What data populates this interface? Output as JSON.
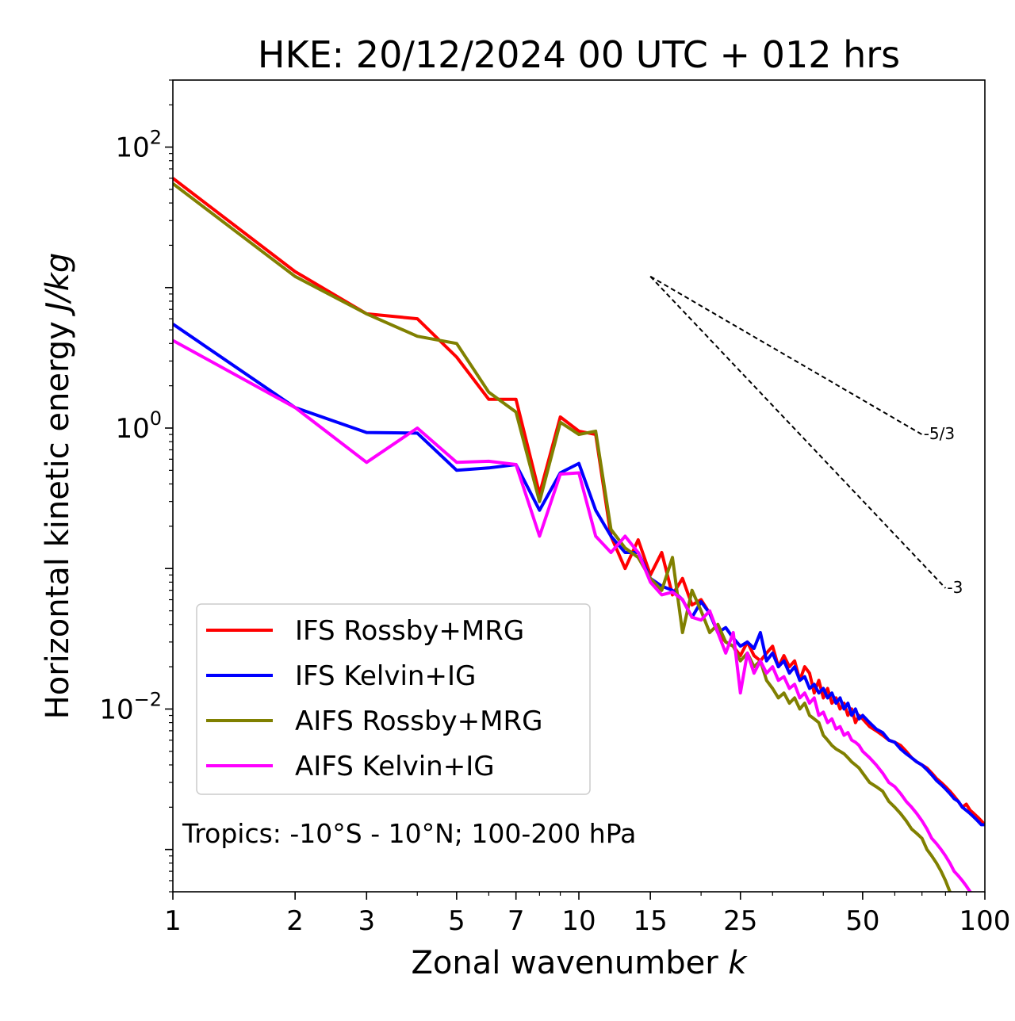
{
  "chart_data": {
    "type": "line",
    "title": "HKE: 20/12/2024 00 UTC + 012 hrs",
    "xlabel": "Zonal wavenumber",
    "xlabel_var": "k",
    "ylabel": "Horizontal kinetic energy",
    "ylabel_unit": "J/kg",
    "xscale": "log",
    "yscale": "log",
    "xlim": [
      1,
      100
    ],
    "ylim": [
      0.0005,
      300
    ],
    "x_ticks": [
      {
        "v": 1,
        "label": "1"
      },
      {
        "v": 2,
        "label": "2"
      },
      {
        "v": 3,
        "label": "3"
      },
      {
        "v": 5,
        "label": "5"
      },
      {
        "v": 7,
        "label": "7"
      },
      {
        "v": 10,
        "label": "10"
      },
      {
        "v": 15,
        "label": "15"
      },
      {
        "v": 25,
        "label": "25"
      },
      {
        "v": 50,
        "label": "50"
      },
      {
        "v": 100,
        "label": "100"
      }
    ],
    "y_ticks": [
      {
        "v": 100,
        "base": "10",
        "exp": "2"
      },
      {
        "v": 1,
        "base": "10",
        "exp": "0"
      },
      {
        "v": 0.01,
        "base": "10",
        "exp": "−2"
      }
    ],
    "grid": false,
    "legend_position": "lower-left",
    "annotation": "Tropics: -10°S - 10°N; 100-200 hPa",
    "reference_lines": [
      {
        "label": "-5/3",
        "x": [
          15,
          70
        ],
        "y": [
          12.0,
          0.9
        ]
      },
      {
        "label": "-3",
        "x": [
          15,
          80
        ],
        "y": [
          12.0,
          0.0725
        ]
      }
    ],
    "series": [
      {
        "name": "IFS Rossby+MRG",
        "color": "#ff0000",
        "x": [
          1,
          2,
          3,
          4,
          5,
          6,
          7,
          8,
          9,
          10,
          11,
          12,
          13,
          14,
          15,
          16,
          17,
          18,
          19,
          20,
          21,
          22,
          23,
          24,
          25,
          26,
          27,
          28,
          29,
          30,
          31,
          32,
          33,
          34,
          35,
          36,
          37,
          38,
          39,
          40,
          41,
          42,
          43,
          44,
          45,
          46,
          47,
          48,
          49,
          50,
          52,
          54,
          56,
          58,
          60,
          62,
          64,
          66,
          68,
          70,
          72,
          74,
          76,
          78,
          80,
          82,
          84,
          86,
          88,
          90,
          92,
          94,
          96,
          98,
          100
        ],
        "y": [
          60,
          13,
          6.5,
          6.0,
          3.2,
          1.6,
          1.6,
          0.34,
          1.2,
          0.95,
          0.9,
          0.17,
          0.1,
          0.16,
          0.09,
          0.13,
          0.065,
          0.085,
          0.055,
          0.06,
          0.048,
          0.035,
          0.03,
          0.028,
          0.024,
          0.03,
          0.024,
          0.022,
          0.025,
          0.028,
          0.02,
          0.024,
          0.02,
          0.022,
          0.016,
          0.02,
          0.018,
          0.013,
          0.016,
          0.012,
          0.014,
          0.011,
          0.012,
          0.01,
          0.011,
          0.009,
          0.01,
          0.008,
          0.009,
          0.0085,
          0.0075,
          0.007,
          0.0065,
          0.006,
          0.0058,
          0.0055,
          0.005,
          0.0045,
          0.0042,
          0.004,
          0.0038,
          0.0035,
          0.0032,
          0.003,
          0.0028,
          0.0026,
          0.0024,
          0.0022,
          0.002,
          0.0021,
          0.0019,
          0.0018,
          0.0017,
          0.0016,
          0.0015
        ]
      },
      {
        "name": "IFS Kelvin+IG",
        "color": "#0000ff",
        "x": [
          1,
          2,
          3,
          4,
          5,
          6,
          7,
          8,
          9,
          10,
          11,
          12,
          13,
          14,
          15,
          16,
          17,
          18,
          19,
          20,
          21,
          22,
          23,
          24,
          25,
          26,
          27,
          28,
          29,
          30,
          31,
          32,
          33,
          34,
          35,
          36,
          37,
          38,
          39,
          40,
          41,
          42,
          43,
          44,
          45,
          46,
          47,
          48,
          49,
          50,
          52,
          54,
          56,
          58,
          60,
          62,
          64,
          66,
          68,
          70,
          72,
          74,
          76,
          78,
          80,
          82,
          84,
          86,
          88,
          90,
          92,
          94,
          96,
          98,
          100
        ],
        "y": [
          5.5,
          1.4,
          0.93,
          0.92,
          0.5,
          0.52,
          0.55,
          0.26,
          0.48,
          0.56,
          0.26,
          0.17,
          0.13,
          0.13,
          0.085,
          0.075,
          0.07,
          0.06,
          0.045,
          0.058,
          0.048,
          0.035,
          0.038,
          0.032,
          0.028,
          0.03,
          0.027,
          0.035,
          0.022,
          0.025,
          0.02,
          0.022,
          0.018,
          0.02,
          0.016,
          0.017,
          0.014,
          0.015,
          0.013,
          0.014,
          0.012,
          0.013,
          0.011,
          0.012,
          0.01,
          0.011,
          0.009,
          0.01,
          0.0085,
          0.009,
          0.008,
          0.0072,
          0.0068,
          0.006,
          0.0058,
          0.0052,
          0.0048,
          0.0045,
          0.0042,
          0.004,
          0.0037,
          0.0034,
          0.0031,
          0.0029,
          0.0027,
          0.0025,
          0.0023,
          0.0022,
          0.002,
          0.0019,
          0.0018,
          0.0017,
          0.0016,
          0.0015,
          0.0015
        ]
      },
      {
        "name": "AIFS Rossby+MRG",
        "color": "#808000",
        "x": [
          1,
          2,
          3,
          4,
          5,
          6,
          7,
          8,
          9,
          10,
          11,
          12,
          13,
          14,
          15,
          16,
          17,
          18,
          19,
          20,
          21,
          22,
          23,
          24,
          25,
          26,
          27,
          28,
          29,
          30,
          31,
          32,
          33,
          34,
          35,
          36,
          37,
          38,
          39,
          40,
          41,
          42,
          43,
          44,
          45,
          46,
          47,
          48,
          49,
          50,
          52,
          54,
          56,
          58,
          60,
          62,
          64,
          66,
          68,
          70,
          72,
          74,
          76,
          78,
          80,
          82,
          84,
          86,
          88,
          90,
          92,
          94,
          96,
          98,
          100
        ],
        "y": [
          55,
          12,
          6.5,
          4.5,
          4.0,
          1.8,
          1.3,
          0.3,
          1.1,
          0.9,
          0.95,
          0.19,
          0.14,
          0.12,
          0.085,
          0.07,
          0.12,
          0.035,
          0.07,
          0.05,
          0.035,
          0.04,
          0.03,
          0.028,
          0.022,
          0.025,
          0.02,
          0.022,
          0.016,
          0.014,
          0.012,
          0.013,
          0.011,
          0.012,
          0.01,
          0.011,
          0.009,
          0.0085,
          0.008,
          0.0065,
          0.006,
          0.0055,
          0.0052,
          0.005,
          0.0048,
          0.0045,
          0.0042,
          0.004,
          0.0038,
          0.0035,
          0.003,
          0.0028,
          0.0026,
          0.0022,
          0.002,
          0.0018,
          0.0016,
          0.0014,
          0.0013,
          0.0012,
          0.001,
          0.0009,
          0.0008,
          0.0007,
          0.0006,
          0.0005,
          0.00045,
          0.0004,
          0.00038,
          0.00035,
          0.00033,
          0.00031,
          0.0003,
          0.00029,
          0.00028
        ]
      },
      {
        "name": "AIFS Kelvin+IG",
        "color": "#ff00ff",
        "x": [
          1,
          2,
          3,
          4,
          5,
          6,
          7,
          8,
          9,
          10,
          11,
          12,
          13,
          14,
          15,
          16,
          17,
          18,
          19,
          20,
          21,
          22,
          23,
          24,
          25,
          26,
          27,
          28,
          29,
          30,
          31,
          32,
          33,
          34,
          35,
          36,
          37,
          38,
          39,
          40,
          41,
          42,
          43,
          44,
          45,
          46,
          47,
          48,
          49,
          50,
          52,
          54,
          56,
          58,
          60,
          62,
          64,
          66,
          68,
          70,
          72,
          74,
          76,
          78,
          80,
          82,
          84,
          86,
          88,
          90,
          92,
          94,
          96,
          98,
          100
        ],
        "y": [
          4.2,
          1.4,
          0.57,
          1.0,
          0.57,
          0.58,
          0.55,
          0.17,
          0.47,
          0.48,
          0.17,
          0.13,
          0.17,
          0.13,
          0.08,
          0.065,
          0.068,
          0.06,
          0.045,
          0.043,
          0.05,
          0.035,
          0.025,
          0.035,
          0.013,
          0.025,
          0.018,
          0.022,
          0.018,
          0.02,
          0.016,
          0.017,
          0.014,
          0.015,
          0.012,
          0.013,
          0.011,
          0.012,
          0.009,
          0.0095,
          0.008,
          0.0085,
          0.0072,
          0.0075,
          0.0065,
          0.0068,
          0.006,
          0.0058,
          0.0055,
          0.005,
          0.0045,
          0.004,
          0.0035,
          0.003,
          0.0028,
          0.0025,
          0.0022,
          0.002,
          0.0018,
          0.0016,
          0.0014,
          0.0012,
          0.0011,
          0.001,
          0.0009,
          0.0008,
          0.0007,
          0.00065,
          0.0006,
          0.00055,
          0.0005,
          0.00046,
          0.00043,
          0.0004,
          0.00038
        ]
      }
    ]
  }
}
